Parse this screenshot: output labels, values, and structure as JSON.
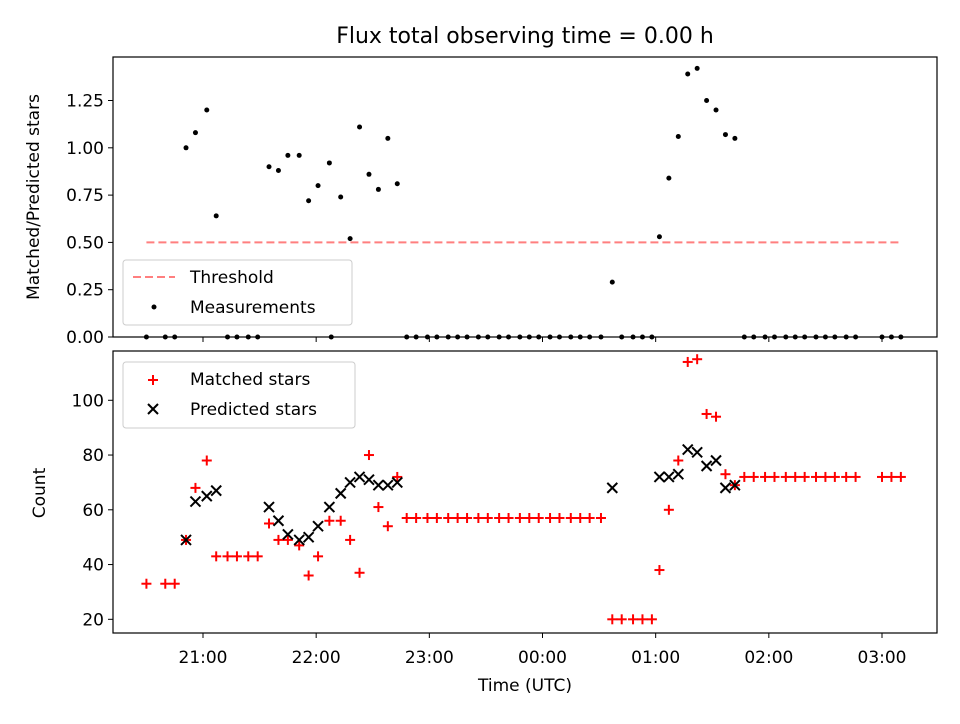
{
  "title": "Flux total observing time = 0.00 h",
  "x_ticks": [
    "21:00",
    "22:00",
    "23:00",
    "00:00",
    "01:00",
    "02:00",
    "03:00"
  ],
  "colors": {
    "threshold": "#ff7f7f",
    "measurements": "#000000",
    "matched": "#ff0000",
    "predicted": "#000000"
  },
  "chart_data": [
    {
      "type": "scatter",
      "ylabel": "Matched/Predicted stars",
      "ylim": [
        0,
        1.48
      ],
      "yticks": [
        "0.00",
        "0.25",
        "0.50",
        "0.75",
        "1.00",
        "1.25"
      ],
      "legend_position": "lower-left",
      "threshold": {
        "name": "Threshold",
        "value": 0.5,
        "x_range": [
          "20:30",
          "03:10"
        ]
      },
      "series": [
        {
          "name": "Measurements",
          "points": [
            [
              "20:30",
              0
            ],
            [
              "20:40",
              0
            ],
            [
              "20:45",
              0
            ],
            [
              "20:51",
              1.0
            ],
            [
              "20:56",
              1.08
            ],
            [
              "21:02",
              1.2
            ],
            [
              "21:07",
              0.64
            ],
            [
              "21:13",
              0
            ],
            [
              "21:18",
              0
            ],
            [
              "21:24",
              0
            ],
            [
              "21:29",
              0
            ],
            [
              "21:35",
              0.9
            ],
            [
              "21:40",
              0.88
            ],
            [
              "21:45",
              0.96
            ],
            [
              "21:51",
              0.96
            ],
            [
              "21:56",
              0.72
            ],
            [
              "22:01",
              0.8
            ],
            [
              "22:07",
              0.92
            ],
            [
              "22:08",
              0
            ],
            [
              "22:13",
              0.74
            ],
            [
              "22:18",
              0.52
            ],
            [
              "22:23",
              1.11
            ],
            [
              "22:28",
              0.86
            ],
            [
              "22:33",
              0.78
            ],
            [
              "22:38",
              1.05
            ],
            [
              "22:43",
              0.81
            ],
            [
              "22:48",
              0
            ],
            [
              "22:53",
              0
            ],
            [
              "22:59",
              0
            ],
            [
              "23:04",
              0
            ],
            [
              "23:10",
              0
            ],
            [
              "23:15",
              0
            ],
            [
              "23:20",
              0
            ],
            [
              "23:26",
              0
            ],
            [
              "23:31",
              0
            ],
            [
              "23:37",
              0
            ],
            [
              "23:42",
              0
            ],
            [
              "23:48",
              0
            ],
            [
              "23:53",
              0
            ],
            [
              "23:58",
              0
            ],
            [
              "00:04",
              0
            ],
            [
              "00:09",
              0
            ],
            [
              "00:15",
              0
            ],
            [
              "00:20",
              0
            ],
            [
              "00:25",
              0
            ],
            [
              "00:31",
              0
            ],
            [
              "00:37",
              0.29
            ],
            [
              "00:42",
              0
            ],
            [
              "00:48",
              0
            ],
            [
              "00:53",
              0
            ],
            [
              "00:58",
              0
            ],
            [
              "01:02",
              0.53
            ],
            [
              "01:07",
              0.84
            ],
            [
              "01:12",
              1.06
            ],
            [
              "01:17",
              1.39
            ],
            [
              "01:22",
              1.42
            ],
            [
              "01:27",
              1.25
            ],
            [
              "01:32",
              1.2
            ],
            [
              "01:37",
              1.07
            ],
            [
              "01:42",
              1.05
            ],
            [
              "01:47",
              0
            ],
            [
              "01:52",
              0
            ],
            [
              "01:58",
              0
            ],
            [
              "02:03",
              0
            ],
            [
              "02:09",
              0
            ],
            [
              "02:14",
              0
            ],
            [
              "02:19",
              0
            ],
            [
              "02:25",
              0
            ],
            [
              "02:30",
              0
            ],
            [
              "02:35",
              0
            ],
            [
              "02:41",
              0
            ],
            [
              "02:46",
              0
            ],
            [
              "03:00",
              0
            ],
            [
              "03:05",
              0
            ],
            [
              "03:10",
              0
            ]
          ]
        }
      ]
    },
    {
      "type": "scatter",
      "xlabel": "Time (UTC)",
      "ylabel": "Count",
      "ylim": [
        15,
        118
      ],
      "yticks": [
        "20",
        "40",
        "60",
        "80",
        "100"
      ],
      "legend_position": "top-left",
      "series": [
        {
          "name": "Matched stars",
          "points": [
            [
              "20:30",
              33
            ],
            [
              "20:40",
              33
            ],
            [
              "20:45",
              33
            ],
            [
              "20:51",
              49
            ],
            [
              "20:56",
              68
            ],
            [
              "21:02",
              78
            ],
            [
              "21:07",
              43
            ],
            [
              "21:13",
              43
            ],
            [
              "21:18",
              43
            ],
            [
              "21:24",
              43
            ],
            [
              "21:29",
              43
            ],
            [
              "21:35",
              55
            ],
            [
              "21:40",
              49
            ],
            [
              "21:45",
              49
            ],
            [
              "21:51",
              47
            ],
            [
              "21:56",
              36
            ],
            [
              "22:01",
              43
            ],
            [
              "22:07",
              56
            ],
            [
              "22:13",
              56
            ],
            [
              "22:18",
              49
            ],
            [
              "22:23",
              37
            ],
            [
              "22:28",
              80
            ],
            [
              "22:33",
              61
            ],
            [
              "22:38",
              54
            ],
            [
              "22:43",
              72
            ],
            [
              "22:48",
              57
            ],
            [
              "22:53",
              57
            ],
            [
              "22:59",
              57
            ],
            [
              "23:04",
              57
            ],
            [
              "23:10",
              57
            ],
            [
              "23:15",
              57
            ],
            [
              "23:20",
              57
            ],
            [
              "23:26",
              57
            ],
            [
              "23:31",
              57
            ],
            [
              "23:37",
              57
            ],
            [
              "23:42",
              57
            ],
            [
              "23:48",
              57
            ],
            [
              "23:53",
              57
            ],
            [
              "23:58",
              57
            ],
            [
              "00:04",
              57
            ],
            [
              "00:09",
              57
            ],
            [
              "00:15",
              57
            ],
            [
              "00:20",
              57
            ],
            [
              "00:25",
              57
            ],
            [
              "00:31",
              57
            ],
            [
              "00:37",
              20
            ],
            [
              "00:42",
              20
            ],
            [
              "00:48",
              20
            ],
            [
              "00:53",
              20
            ],
            [
              "00:58",
              20
            ],
            [
              "01:02",
              38
            ],
            [
              "01:07",
              60
            ],
            [
              "01:12",
              78
            ],
            [
              "01:17",
              114
            ],
            [
              "01:22",
              115
            ],
            [
              "01:27",
              95
            ],
            [
              "01:32",
              94
            ],
            [
              "01:37",
              73
            ],
            [
              "01:42",
              69
            ],
            [
              "01:47",
              72
            ],
            [
              "01:52",
              72
            ],
            [
              "01:58",
              72
            ],
            [
              "02:03",
              72
            ],
            [
              "02:09",
              72
            ],
            [
              "02:14",
              72
            ],
            [
              "02:19",
              72
            ],
            [
              "02:25",
              72
            ],
            [
              "02:30",
              72
            ],
            [
              "02:35",
              72
            ],
            [
              "02:41",
              72
            ],
            [
              "02:46",
              72
            ],
            [
              "03:00",
              72
            ],
            [
              "03:05",
              72
            ],
            [
              "03:10",
              72
            ]
          ]
        },
        {
          "name": "Predicted stars",
          "points": [
            [
              "20:51",
              49
            ],
            [
              "20:56",
              63
            ],
            [
              "21:02",
              65
            ],
            [
              "21:07",
              67
            ],
            [
              "21:35",
              61
            ],
            [
              "21:40",
              56
            ],
            [
              "21:45",
              51
            ],
            [
              "21:51",
              49
            ],
            [
              "21:56",
              50
            ],
            [
              "22:01",
              54
            ],
            [
              "22:07",
              61
            ],
            [
              "22:13",
              66
            ],
            [
              "22:18",
              70
            ],
            [
              "22:23",
              72
            ],
            [
              "22:28",
              71
            ],
            [
              "22:33",
              69
            ],
            [
              "22:38",
              69
            ],
            [
              "22:43",
              70
            ],
            [
              "00:37",
              68
            ],
            [
              "01:02",
              72
            ],
            [
              "01:07",
              72
            ],
            [
              "01:12",
              73
            ],
            [
              "01:17",
              82
            ],
            [
              "01:22",
              81
            ],
            [
              "01:27",
              76
            ],
            [
              "01:32",
              78
            ],
            [
              "01:37",
              68
            ],
            [
              "01:42",
              69
            ]
          ]
        }
      ]
    }
  ]
}
